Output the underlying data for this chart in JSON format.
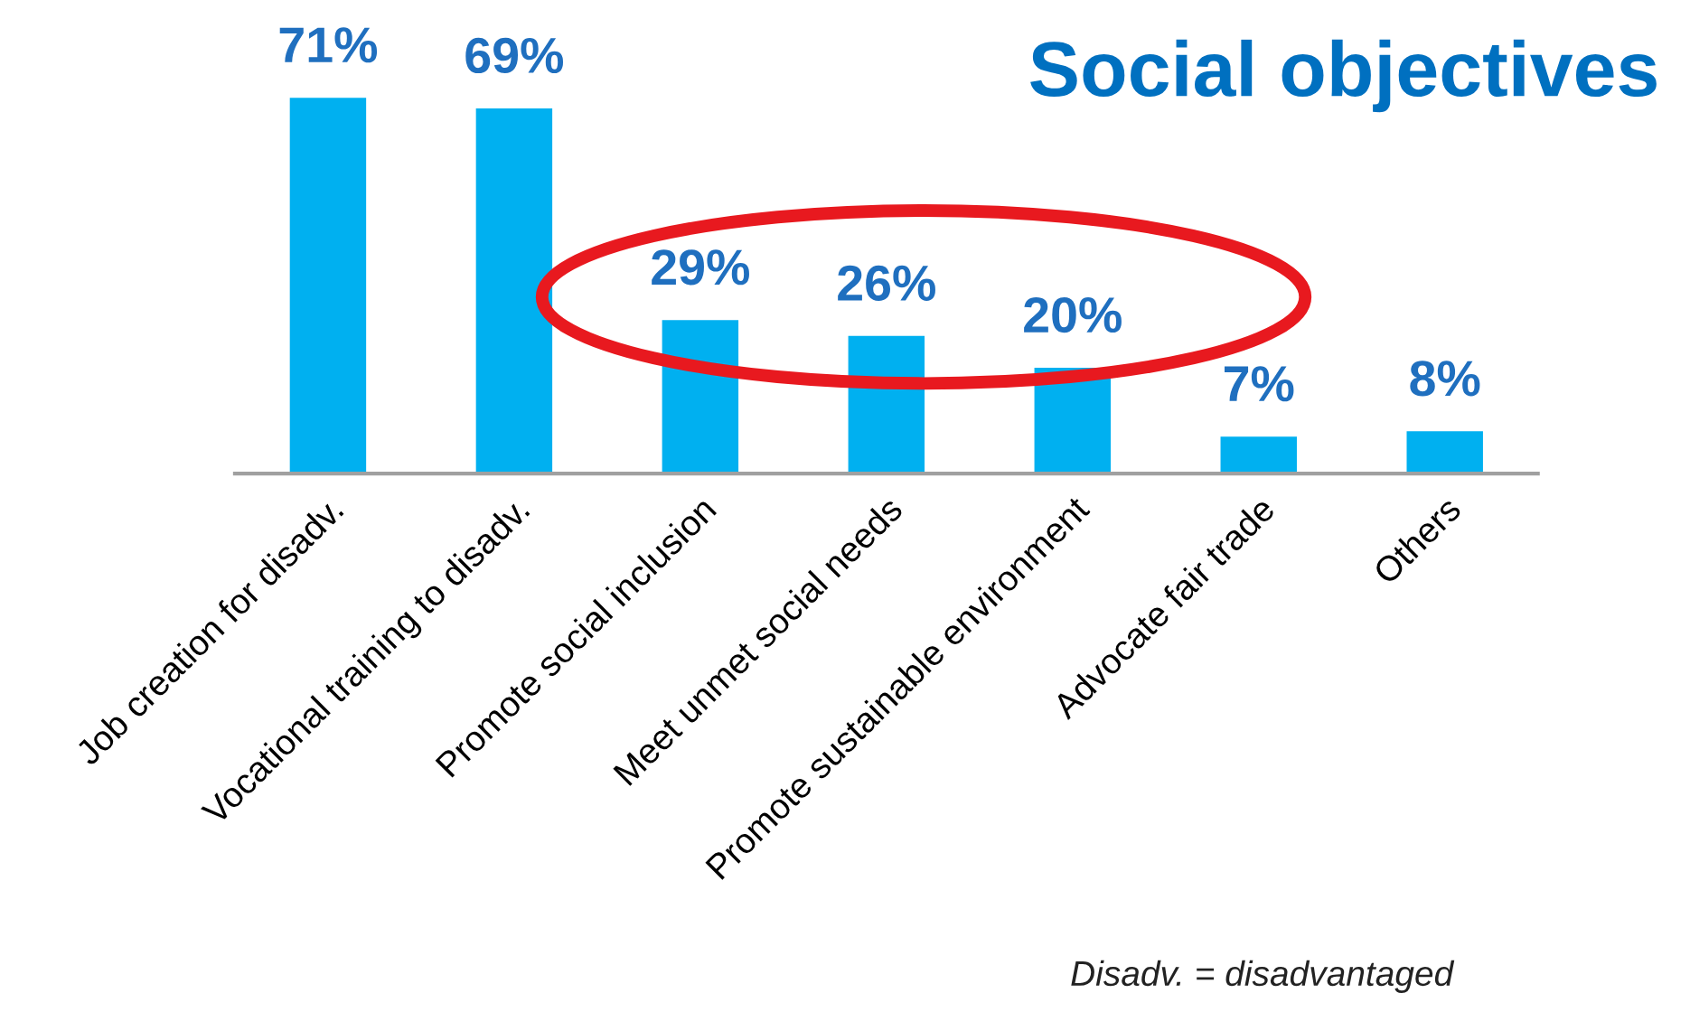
{
  "chart_data": {
    "type": "bar",
    "title": "Social objectives",
    "categories": [
      "Job creation for disadv.",
      "Vocational training to disadv.",
      "Promote social inclusion",
      "Meet unmet social needs",
      "Promote sustainable environment",
      "Advocate fair trade",
      "Others"
    ],
    "values": [
      71,
      69,
      29,
      26,
      20,
      7,
      8
    ],
    "value_labels": [
      "71%",
      "69%",
      "29%",
      "26%",
      "20%",
      "7%",
      "8%"
    ],
    "color": "#00b0f0",
    "grid": false,
    "legend": false,
    "annotations": [
      "Disadv. = disadvantaged"
    ]
  }
}
